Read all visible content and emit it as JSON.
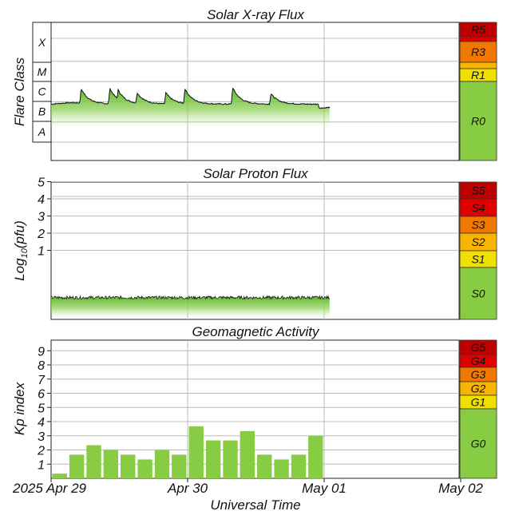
{
  "chart_data": [
    {
      "type": "area",
      "title": "Solar X-ray Flux",
      "ylabel": "Flare Class",
      "flare_classes": [
        "X",
        "M",
        "C",
        "B",
        "A"
      ],
      "scale": [
        {
          "label": "R5",
          "color": "#c00000"
        },
        {
          "label": "",
          "color": "#e00000"
        },
        {
          "label": "R3",
          "color": "#f07800"
        },
        {
          "label": "",
          "color": "#f8b400"
        },
        {
          "label": "R1",
          "color": "#f0e000"
        },
        {
          "label": "R0",
          "color": "#88cc44"
        }
      ],
      "series_color": "#7cc43c",
      "baseline_level": "upper B to lower C",
      "peaks": [
        {
          "time": "2025-04-29 09:00",
          "class": "C5"
        },
        {
          "time": "2025-04-29 17:00",
          "class": "C5"
        },
        {
          "time": "2025-04-29 19:00",
          "class": "C4"
        },
        {
          "time": "2025-04-30 00:00",
          "class": "C4"
        },
        {
          "time": "2025-04-30 13:30",
          "class": "C5"
        },
        {
          "time": "2025-04-30 18:30",
          "class": "C2"
        }
      ]
    },
    {
      "type": "area",
      "title": "Solar Proton Flux",
      "ylabel": "Log10(pfu)",
      "ylabel_main": "Log",
      "ylabel_sub": "10",
      "ylabel_rest": "(pfu)",
      "yticks": [
        "5",
        "4",
        "3",
        "2",
        "1"
      ],
      "ylim": [
        -2,
        6
      ],
      "scale": [
        {
          "label": "S5",
          "color": "#c00000"
        },
        {
          "label": "S4",
          "color": "#e00000"
        },
        {
          "label": "S3",
          "color": "#f07800"
        },
        {
          "label": "S2",
          "color": "#f8b400"
        },
        {
          "label": "S1",
          "color": "#f0e000"
        },
        {
          "label": "S0",
          "color": "#88cc44"
        }
      ],
      "series_color": "#7cc43c",
      "level_log10": -0.6
    },
    {
      "type": "bar",
      "title": "Geomagnetic Activity",
      "ylabel": "Kp index",
      "yticks": [
        "9",
        "8",
        "7",
        "6",
        "5",
        "4",
        "3",
        "2",
        "1"
      ],
      "ylim": [
        0,
        10
      ],
      "scale": [
        {
          "label": "G5",
          "color": "#c00000"
        },
        {
          "label": "G4",
          "color": "#e00000"
        },
        {
          "label": "G3",
          "color": "#f07800"
        },
        {
          "label": "G2",
          "color": "#f8b400"
        },
        {
          "label": "G1",
          "color": "#f0e000"
        },
        {
          "label": "G0",
          "color": "#88cc44"
        }
      ],
      "bar_color": "#88cc44",
      "interval_hours": 3,
      "values": [
        0.33,
        1.67,
        2.33,
        2.0,
        1.67,
        1.33,
        2.0,
        1.67,
        3.67,
        2.67,
        2.67,
        3.33,
        1.67,
        1.33,
        1.67,
        3.0
      ]
    }
  ],
  "xaxis": {
    "label": "Universal Time",
    "ticks": [
      "2025 Apr 29",
      "Apr 30",
      "May 01",
      "May 02"
    ]
  }
}
